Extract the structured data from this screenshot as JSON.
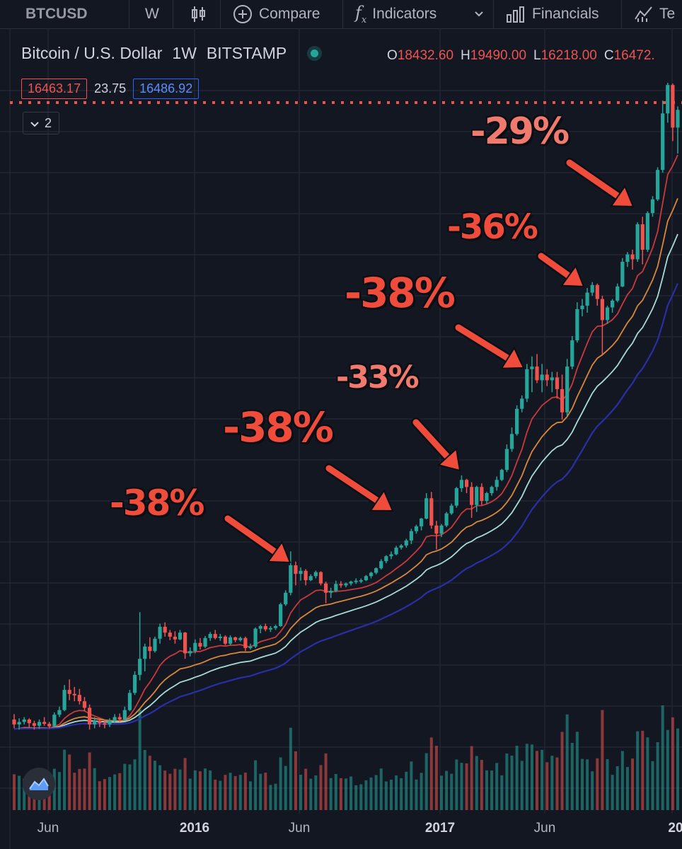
{
  "toolbar": {
    "symbol": "BTCUSD",
    "interval": "W",
    "compare_label": "Compare",
    "indicators_label": "Indicators",
    "financials_label": "Financials",
    "templates_label": "Te"
  },
  "legend": {
    "title": "Bitcoin / U.S. Dollar",
    "interval": "1W",
    "exchange": "BITSTAMP",
    "ohlc": {
      "o_key": "O",
      "o": "18432.60",
      "h_key": "H",
      "h": "19490.00",
      "l_key": "L",
      "l": "16218.00",
      "c_key": "C",
      "c": "16472."
    }
  },
  "quote": {
    "bid": "16463.17",
    "spread": "23.75",
    "ask": "16486.92"
  },
  "collapse": {
    "count": "2"
  },
  "annotations": [
    "-38%",
    "-38%",
    "-33%",
    "-38%",
    "-36%",
    "-29%"
  ],
  "x_axis": {
    "ticks": [
      "Jun",
      "2016",
      "Jun",
      "2017",
      "Jun",
      "20"
    ]
  },
  "colors": {
    "up": "#26a69a",
    "down": "#ef5350",
    "annotation": "#ef4c3c",
    "ema_fast": "#c93a3a",
    "ema_mid": "#d9883a",
    "ema_slow": "#a7dcd6",
    "ema_long": "#2a2fa5"
  },
  "icons": [
    "candles-icon",
    "compare-plus-icon",
    "indicators-fx-icon",
    "chevron-down-icon",
    "financials-bars-icon",
    "templates-icon",
    "tradingview-logo-icon"
  ],
  "chart_data": {
    "type": "candlestick",
    "title": "Bitcoin / U.S. Dollar · 1W · BITSTAMP",
    "x": "weekly, ~Apr 2015 to Dec 2017",
    "y_scale": "log",
    "y_range_usd": [
      180,
      20000
    ],
    "candles_ohlc": [
      [
        236,
        245,
        222,
        228
      ],
      [
        228,
        238,
        220,
        232
      ],
      [
        232,
        240,
        228,
        236
      ],
      [
        236,
        238,
        224,
        230
      ],
      [
        230,
        234,
        220,
        226
      ],
      [
        226,
        236,
        221,
        232
      ],
      [
        232,
        240,
        226,
        229
      ],
      [
        229,
        232,
        222,
        225
      ],
      [
        225,
        248,
        224,
        244
      ],
      [
        244,
        258,
        240,
        252
      ],
      [
        252,
        300,
        250,
        290
      ],
      [
        290,
        312,
        270,
        282
      ],
      [
        282,
        296,
        268,
        280
      ],
      [
        280,
        292,
        262,
        268
      ],
      [
        268,
        276,
        250,
        256
      ],
      [
        256,
        262,
        220,
        228
      ],
      [
        228,
        240,
        222,
        234
      ],
      [
        234,
        238,
        224,
        230
      ],
      [
        230,
        236,
        222,
        228
      ],
      [
        228,
        238,
        224,
        234
      ],
      [
        234,
        245,
        230,
        240
      ],
      [
        240,
        246,
        232,
        236
      ],
      [
        236,
        258,
        234,
        252
      ],
      [
        252,
        290,
        250,
        284
      ],
      [
        284,
        330,
        280,
        322
      ],
      [
        322,
        498,
        310,
        360
      ],
      [
        360,
        400,
        330,
        392
      ],
      [
        392,
        418,
        360,
        380
      ],
      [
        380,
        420,
        376,
        414
      ],
      [
        414,
        460,
        400,
        450
      ],
      [
        450,
        464,
        420,
        432
      ],
      [
        432,
        440,
        410,
        420
      ],
      [
        420,
        436,
        400,
        412
      ],
      [
        412,
        440,
        410,
        432
      ],
      [
        432,
        434,
        360,
        374
      ],
      [
        374,
        390,
        366,
        380
      ],
      [
        380,
        412,
        374,
        402
      ],
      [
        402,
        416,
        384,
        392
      ],
      [
        392,
        422,
        388,
        416
      ],
      [
        416,
        434,
        408,
        428
      ],
      [
        428,
        440,
        412,
        416
      ],
      [
        416,
        428,
        408,
        420
      ],
      [
        420,
        424,
        396,
        400
      ],
      [
        400,
        424,
        396,
        418
      ],
      [
        418,
        420,
        404,
        410
      ],
      [
        410,
        420,
        406,
        416
      ],
      [
        416,
        420,
        380,
        388
      ],
      [
        388,
        400,
        384,
        392
      ],
      [
        392,
        448,
        388,
        444
      ],
      [
        444,
        456,
        430,
        452
      ],
      [
        452,
        460,
        436,
        442
      ],
      [
        442,
        452,
        434,
        446
      ],
      [
        446,
        456,
        440,
        452
      ],
      [
        452,
        532,
        450,
        526
      ],
      [
        526,
        580,
        520,
        570
      ],
      [
        570,
        760,
        560,
        690
      ],
      [
        690,
        708,
        600,
        650
      ],
      [
        650,
        680,
        620,
        664
      ],
      [
        664,
        672,
        600,
        622
      ],
      [
        622,
        648,
        618,
        640
      ],
      [
        640,
        665,
        630,
        658
      ],
      [
        658,
        662,
        600,
        608
      ],
      [
        608,
        616,
        530,
        570
      ],
      [
        570,
        590,
        550,
        578
      ],
      [
        578,
        620,
        572,
        606
      ],
      [
        606,
        618,
        590,
        600
      ],
      [
        600,
        612,
        592,
        608
      ],
      [
        608,
        620,
        600,
        616
      ],
      [
        616,
        630,
        606,
        620
      ],
      [
        620,
        630,
        610,
        622
      ],
      [
        622,
        645,
        618,
        640
      ],
      [
        640,
        660,
        630,
        655
      ],
      [
        655,
        680,
        648,
        676
      ],
      [
        676,
        720,
        670,
        710
      ],
      [
        710,
        740,
        700,
        735
      ],
      [
        735,
        760,
        720,
        745
      ],
      [
        745,
        790,
        740,
        780
      ],
      [
        780,
        800,
        770,
        792
      ],
      [
        792,
        830,
        780,
        820
      ],
      [
        820,
        890,
        800,
        875
      ],
      [
        875,
        915,
        860,
        905
      ],
      [
        905,
        960,
        880,
        955
      ],
      [
        955,
        1140,
        950,
        1100
      ],
      [
        1100,
        1150,
        890,
        910
      ],
      [
        910,
        940,
        770,
        860
      ],
      [
        860,
        920,
        840,
        910
      ],
      [
        910,
        1000,
        900,
        990
      ],
      [
        990,
        1060,
        980,
        1045
      ],
      [
        1045,
        1190,
        1030,
        1180
      ],
      [
        1180,
        1290,
        1150,
        1250
      ],
      [
        1250,
        1260,
        1140,
        1190
      ],
      [
        1190,
        1230,
        960,
        1050
      ],
      [
        1050,
        1200,
        1000,
        1190
      ],
      [
        1190,
        1220,
        1050,
        1080
      ],
      [
        1080,
        1150,
        1060,
        1140
      ],
      [
        1140,
        1200,
        1120,
        1190
      ],
      [
        1190,
        1280,
        1160,
        1250
      ],
      [
        1250,
        1350,
        1240,
        1340
      ],
      [
        1340,
        1600,
        1320,
        1550
      ],
      [
        1550,
        1800,
        1520,
        1720
      ],
      [
        1720,
        2100,
        1700,
        2050
      ],
      [
        2050,
        2250,
        2000,
        2200
      ],
      [
        2200,
        2800,
        2150,
        2700
      ],
      [
        2700,
        2950,
        2300,
        2750
      ],
      [
        2750,
        3000,
        2450,
        2500
      ],
      [
        2500,
        2800,
        2300,
        2600
      ],
      [
        2600,
        2700,
        2400,
        2500
      ],
      [
        2500,
        2650,
        2300,
        2550
      ],
      [
        2550,
        2650,
        2200,
        2350
      ],
      [
        2350,
        2600,
        1900,
        2000
      ],
      [
        2000,
        2900,
        1950,
        2750
      ],
      [
        2750,
        3400,
        2700,
        3300
      ],
      [
        3300,
        4300,
        3250,
        4100
      ],
      [
        4100,
        4400,
        3900,
        4200
      ],
      [
        4200,
        4750,
        4000,
        4600
      ],
      [
        4600,
        4950,
        4500,
        4850
      ],
      [
        4850,
        4900,
        4200,
        4400
      ],
      [
        4400,
        4500,
        3000,
        3800
      ],
      [
        3800,
        4200,
        3700,
        4150
      ],
      [
        4150,
        4400,
        4000,
        4350
      ],
      [
        4350,
        4900,
        4300,
        4800
      ],
      [
        4800,
        5850,
        4780,
        5700
      ],
      [
        5700,
        6100,
        5500,
        6000
      ],
      [
        6000,
        6200,
        5400,
        5800
      ],
      [
        5800,
        7500,
        5700,
        7400
      ],
      [
        7400,
        7800,
        5600,
        6200
      ],
      [
        6200,
        8100,
        6100,
        8000
      ],
      [
        8000,
        9000,
        7800,
        8800
      ],
      [
        8800,
        11000,
        8700,
        10800
      ],
      [
        10800,
        17500,
        10600,
        16000
      ],
      [
        16000,
        19800,
        15000,
        19500
      ],
      [
        19500,
        19700,
        13200,
        14500
      ],
      [
        14500,
        16800,
        12100,
        16400
      ]
    ],
    "moving_averages": [
      "fast (red)",
      "medium (orange)",
      "slow (light cyan)",
      "long (dark blue)"
    ],
    "volume": "shown as bars along the bottom, colored by candle direction",
    "annotations": [
      {
        "label": "-38%",
        "near": "Jun 2016 peak"
      },
      {
        "label": "-38%",
        "near": "late 2016"
      },
      {
        "label": "-33%",
        "near": "early 2017"
      },
      {
        "label": "-38%",
        "near": "May/Jun 2017"
      },
      {
        "label": "-36%",
        "near": "Sep 2017"
      },
      {
        "label": "-29%",
        "near": "Dec 2017"
      }
    ],
    "price_line": "dotted red line at the current price (~16463)",
    "x_tick_labels": [
      "Jun",
      "2016",
      "Jun",
      "2017",
      "Jun",
      "20"
    ]
  }
}
